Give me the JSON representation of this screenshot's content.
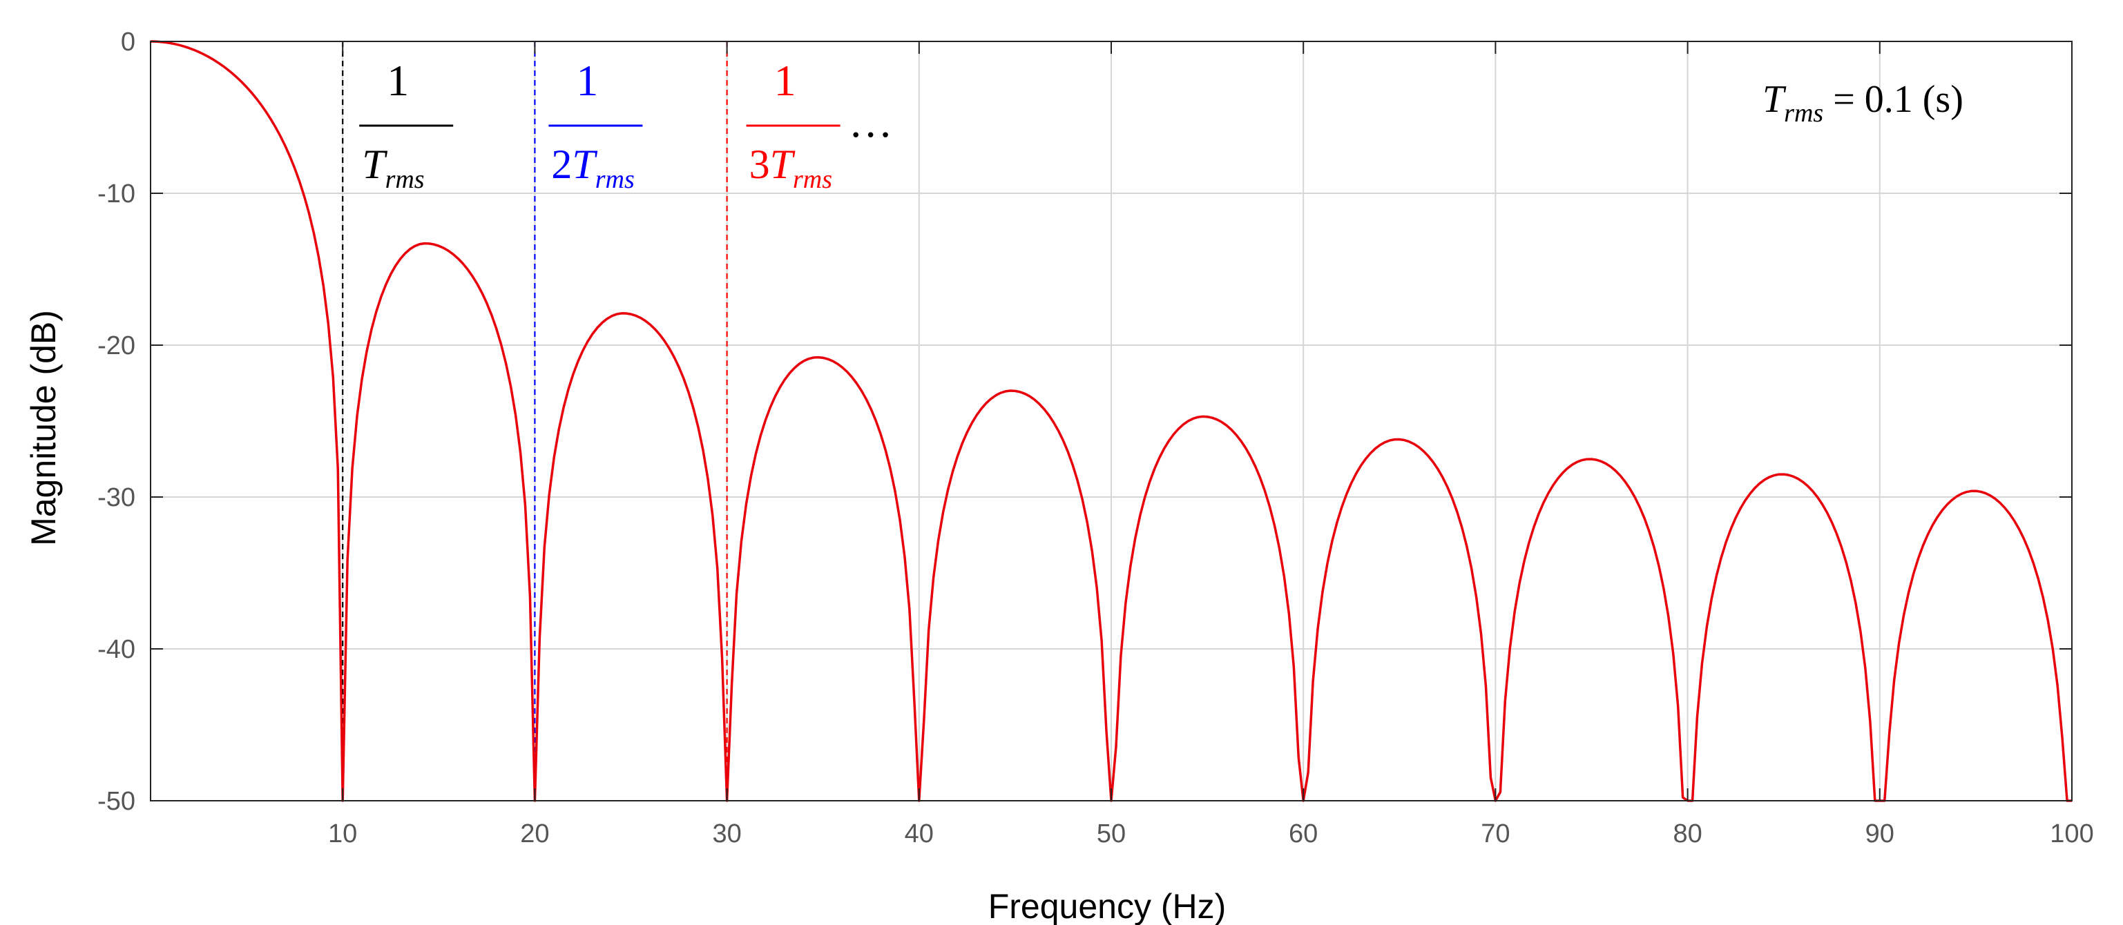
{
  "chart_data": {
    "type": "line",
    "title": "",
    "xlabel": "Frequency  (Hz)",
    "ylabel": "Magnitude (dB)",
    "xlim": [
      0,
      100
    ],
    "ylim": [
      -50,
      0
    ],
    "xticks": [
      10,
      20,
      30,
      40,
      50,
      60,
      70,
      80,
      90,
      100
    ],
    "yticks": [
      0,
      -10,
      -20,
      -30,
      -40,
      -50
    ],
    "grid": true,
    "series": [
      {
        "color": "#e8000b",
        "x": [
          0,
          14.3,
          20,
          24.6,
          30,
          34.7,
          40,
          44.8,
          50,
          54.8,
          60,
          64.9,
          70,
          74.9,
          80,
          84.9,
          90,
          94.9,
          100
        ],
        "y": [
          0,
          -13.3,
          -50,
          -17.9,
          -50,
          -20.8,
          -50,
          -23.0,
          -50,
          -24.7,
          -50,
          -26.2,
          -50,
          -27.5,
          -50,
          -28.5,
          -50,
          -29.6,
          -50
        ]
      }
    ],
    "nulls": [
      10,
      20,
      30,
      40,
      50,
      60,
      70,
      80,
      90,
      100
    ],
    "markers": [
      {
        "x": 10,
        "color": "#000000",
        "numerator": "1",
        "coef": "",
        "symbol": "T",
        "subscript": "rms",
        "suffix": ""
      },
      {
        "x": 20,
        "color": "#0000ff",
        "numerator": "1",
        "coef": "2",
        "symbol": "T",
        "subscript": "rms",
        "suffix": ""
      },
      {
        "x": 30,
        "color": "#ff0000",
        "numerator": "1",
        "coef": "3",
        "symbol": "T",
        "subscript": "rms",
        "suffix": "…"
      }
    ],
    "annotation": {
      "symbol": "T",
      "subscript": "rms",
      "text": " = 0.1 (s)"
    }
  }
}
